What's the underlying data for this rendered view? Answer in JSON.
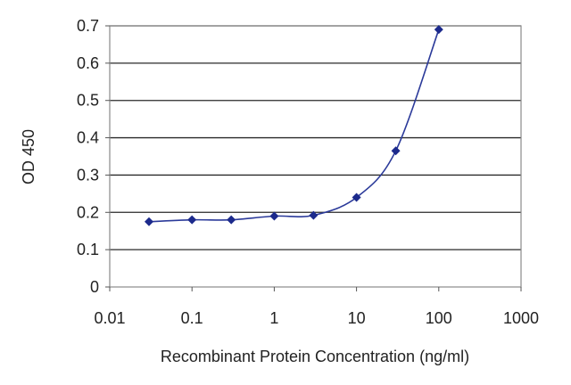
{
  "chart_data": {
    "type": "line",
    "title": "",
    "xlabel": "Recombinant Protein Concentration (ng/ml)",
    "ylabel": "OD 450",
    "x_scale": "log",
    "xlim": [
      0.01,
      1000
    ],
    "ylim": [
      0,
      0.7
    ],
    "x_ticks": [
      "0.01",
      "0.1",
      "1",
      "10",
      "100",
      "1000"
    ],
    "y_ticks": [
      "0",
      "0.1",
      "0.2",
      "0.3",
      "0.4",
      "0.5",
      "0.6",
      "0.7"
    ],
    "grid": "horizontal",
    "legend": "none",
    "series": [
      {
        "color": "#2b3a9a",
        "x": [
          0.03,
          0.1,
          0.3,
          1,
          3,
          10,
          30,
          100
        ],
        "y": [
          0.175,
          0.18,
          0.18,
          0.19,
          0.192,
          0.24,
          0.365,
          0.69
        ]
      }
    ]
  },
  "colors": {
    "plot_background": "#ffffff",
    "grid": "#2a2a2a",
    "line": "#2b3a9a",
    "marker": "#1c2a8c"
  }
}
